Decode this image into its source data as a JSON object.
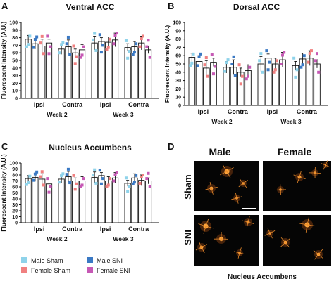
{
  "figure": {
    "panel_letters": [
      "A",
      "B",
      "C",
      "D"
    ],
    "legend": [
      {
        "label": "Male Sham",
        "color": "#8fd3ea"
      },
      {
        "label": "Male SNI",
        "color": "#3a79c4"
      },
      {
        "label": "Female Sham",
        "color": "#f08080"
      },
      {
        "label": "Female SNI",
        "color": "#c659b5"
      }
    ],
    "microscopy": {
      "col_labels": [
        "Male",
        "Female"
      ],
      "row_labels": [
        "Sham",
        "SNI"
      ],
      "caption": "Nucleus Accumbens"
    }
  },
  "chart_data": [
    {
      "type": "bar",
      "panel": "A",
      "title": "Ventral ACC",
      "ylabel": "Fluorescent Intensity (A.U.)",
      "ylim": [
        0,
        100
      ],
      "yticks": [
        0,
        10,
        20,
        30,
        40,
        50,
        60,
        70,
        80,
        90,
        100
      ],
      "side_labels": [
        "Ipsi",
        "Contra",
        "Ipsi",
        "Contra"
      ],
      "week_labels": [
        "Week 2",
        "Week 3"
      ],
      "series": [
        {
          "name": "Male Sham",
          "values": [
            78,
            65,
            73,
            67
          ]
        },
        {
          "name": "Male SNI",
          "values": [
            72,
            68,
            75,
            68
          ]
        },
        {
          "name": "Female Sham",
          "values": [
            69,
            60,
            74,
            73
          ]
        },
        {
          "name": "Female SNI",
          "values": [
            73,
            64,
            77,
            64
          ]
        }
      ]
    },
    {
      "type": "bar",
      "panel": "B",
      "title": "Dorsal ACC",
      "ylabel": "Fluorescent Intensity (A.U.)",
      "ylim": [
        0,
        100
      ],
      "yticks": [
        0,
        10,
        20,
        30,
        40,
        50,
        60,
        70,
        80,
        90,
        100
      ],
      "side_labels": [
        "Ipsi",
        "Contra",
        "Ipsi",
        "Contra"
      ],
      "week_labels": [
        "Week 2",
        "Week 3"
      ],
      "series": [
        {
          "name": "Male Sham",
          "values": [
            58,
            46,
            50,
            48
          ]
        },
        {
          "name": "Male SNI",
          "values": [
            53,
            46,
            57,
            56
          ]
        },
        {
          "name": "Female Sham",
          "values": [
            45,
            40,
            50,
            57
          ]
        },
        {
          "name": "Female SNI",
          "values": [
            52,
            42,
            55,
            50
          ]
        }
      ]
    },
    {
      "type": "bar",
      "panel": "C",
      "title": "Nucleus Accumbens",
      "ylabel": "Fluorescent Intensity (A.U.)",
      "ylim": [
        0,
        100
      ],
      "yticks": [
        0,
        10,
        20,
        30,
        40,
        50,
        60,
        70,
        80,
        90,
        100
      ],
      "side_labels": [
        "Ipsi",
        "Contra",
        "Ipsi",
        "Contra"
      ],
      "week_labels": [
        "Week 2",
        "Week 3"
      ],
      "series": [
        {
          "name": "Male Sham",
          "values": [
            74,
            73,
            76,
            66
          ]
        },
        {
          "name": "Male SNI",
          "values": [
            76,
            77,
            79,
            75
          ]
        },
        {
          "name": "Female Sham",
          "values": [
            73,
            70,
            70,
            71
          ]
        },
        {
          "name": "Female SNI",
          "values": [
            65,
            70,
            75,
            70
          ]
        }
      ]
    }
  ]
}
